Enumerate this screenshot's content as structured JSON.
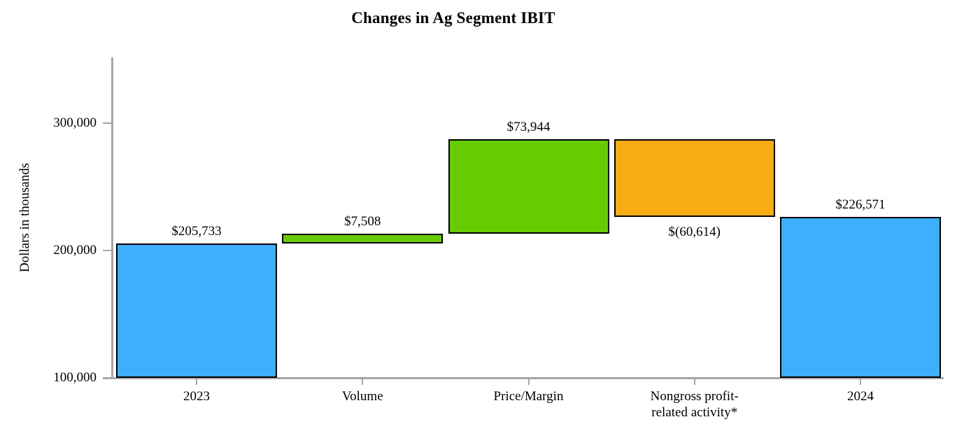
{
  "chart_data": {
    "type": "waterfall",
    "title": "Changes in Ag Segment IBIT",
    "ylabel": "Dollars in thousands",
    "xlabel": "",
    "ylim": [
      100000,
      350000
    ],
    "grid": false,
    "legend": "none",
    "axis_color": "#A6A6A6",
    "bar_border_color": "#000000",
    "colors": {
      "total": "#3FAEFC",
      "increase": "#66CC00",
      "decrease": "#F9AD15"
    },
    "yticks": [
      {
        "value": 300000,
        "label": "300,000"
      },
      {
        "value": 200000,
        "label": "200,000"
      },
      {
        "value": 100000,
        "label": "100,000"
      }
    ],
    "categories": [
      "2023",
      "Volume",
      "Price/Margin",
      "Nongross profit-related activity*",
      "2024"
    ],
    "bars": [
      {
        "category": "2023",
        "category_lines": [
          "2023"
        ],
        "slug": "2023",
        "kind": "total",
        "value": 205733,
        "start": 100000,
        "end": 205733,
        "value_label": "$205,733",
        "label_position": "above",
        "color": "#3FAEFC"
      },
      {
        "category": "Volume",
        "category_lines": [
          "Volume"
        ],
        "slug": "volume",
        "kind": "increase",
        "value": 7508,
        "start": 205733,
        "end": 213241,
        "value_label": "$7,508",
        "label_position": "above",
        "color": "#66CC00"
      },
      {
        "category": "Price/Margin",
        "category_lines": [
          "Price/Margin"
        ],
        "slug": "price-margin",
        "kind": "increase",
        "value": 73944,
        "start": 213241,
        "end": 287185,
        "value_label": "$73,944",
        "label_position": "above",
        "color": "#66CC00"
      },
      {
        "category": "Nongross profit-related activity*",
        "category_lines": [
          "Nongross profit-",
          "related activity*"
        ],
        "slug": "nongross-profit-related-activity",
        "kind": "decrease",
        "value": -60614,
        "start": 287185,
        "end": 226571,
        "value_label": "$(60,614)",
        "label_position": "below",
        "color": "#F9AD15"
      },
      {
        "category": "2024",
        "category_lines": [
          "2024"
        ],
        "slug": "2024",
        "kind": "total",
        "value": 226571,
        "start": 100000,
        "end": 226571,
        "value_label": "$226,571",
        "label_position": "above",
        "color": "#3FAEFC"
      }
    ]
  }
}
